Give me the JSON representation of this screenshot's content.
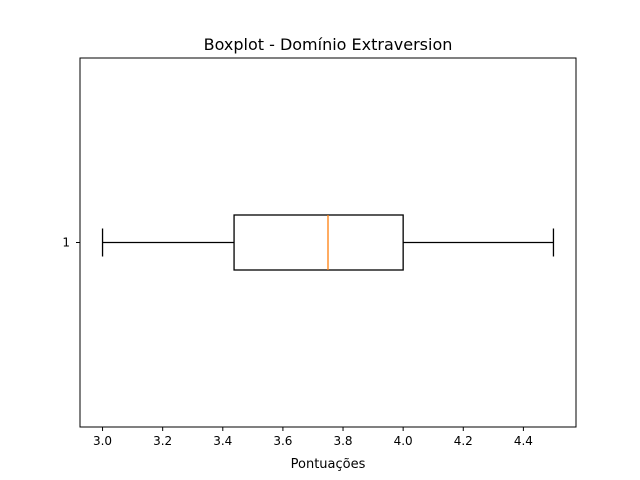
{
  "chart_data": {
    "type": "boxplot",
    "orientation": "horizontal",
    "title": "Boxplot - Domínio Extraversion",
    "xlabel": "Pontuações",
    "ylabel": "",
    "xlim": [
      2.925,
      4.575
    ],
    "x_ticks": [
      "3.0",
      "3.2",
      "3.4",
      "3.6",
      "3.8",
      "4.0",
      "4.2",
      "4.4"
    ],
    "y_ticks": [
      "1"
    ],
    "grid": false,
    "boxes": [
      {
        "category": "1",
        "whisker_low": 3.0,
        "q1": 3.4375,
        "median": 3.75,
        "q3": 4.0,
        "whisker_high": 4.5
      }
    ],
    "colors": {
      "box": "#000000",
      "median": "#ff7f0e"
    }
  }
}
